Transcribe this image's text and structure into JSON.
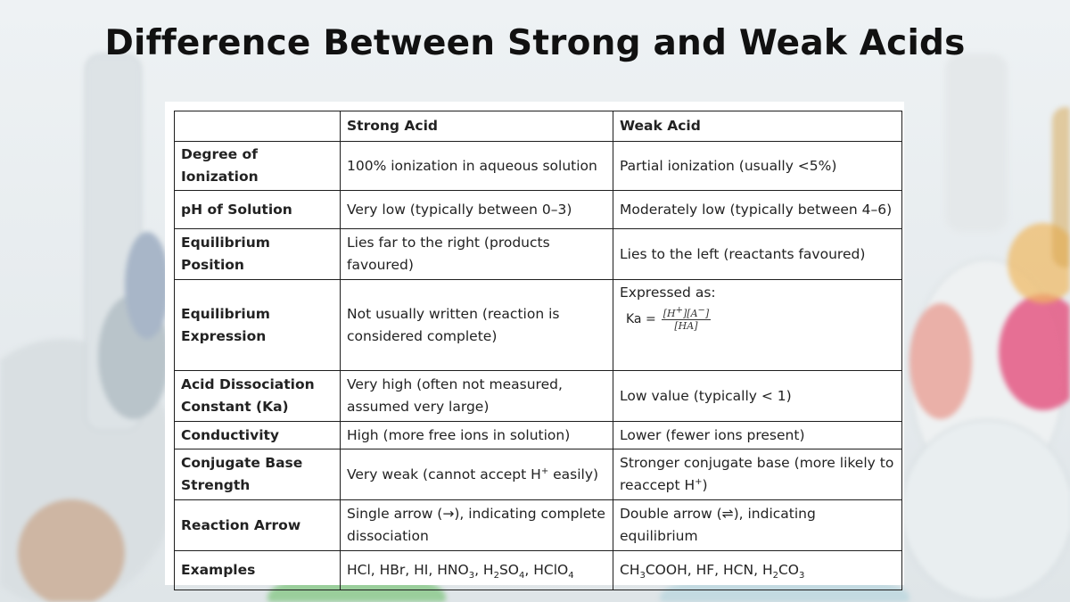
{
  "title": "Difference Between Strong and Weak Acids",
  "colors": {
    "background": "#e6ebee",
    "table_border": "#1e1e1e",
    "text": "#222222"
  },
  "table": {
    "headers": [
      "",
      "Strong Acid",
      "Weak Acid"
    ],
    "rows": [
      {
        "property": "Degree of Ionization",
        "strong": "100% ionization in aqueous solution",
        "weak": "Partial ionization (usually <5%)"
      },
      {
        "property": "pH of Solution",
        "strong": "Very low (typically between 0–3)",
        "weak": "Moderately low (typically between 4–6)"
      },
      {
        "property": "Equilibrium Position",
        "strong": "Lies far to the right (products favoured)",
        "weak": "Lies to the left (reactants favoured)"
      },
      {
        "property": "Equilibrium Expression",
        "strong": "Not usually written (reaction is considered complete)",
        "weak_intro": "Expressed as:",
        "weak_formula_lhs": "Ka =",
        "weak_formula_num_a": "[H",
        "weak_formula_num_a_sup": "+",
        "weak_formula_num_b": "][A",
        "weak_formula_num_b_sup": "−",
        "weak_formula_num_c": "]",
        "weak_formula_den": "[HA]"
      },
      {
        "property": "Acid Dissociation Constant (Ka)",
        "strong": "Very high (often not measured, assumed very large)",
        "weak": "Low value (typically < 1)"
      },
      {
        "property": "Conductivity",
        "strong": "High (more free ions in solution)",
        "weak": "Lower (fewer ions present)"
      },
      {
        "property": "Conjugate Base Strength",
        "strong_a": "Very weak (cannot accept H",
        "strong_sup": "+",
        "strong_b": " easily)",
        "weak_a": "Stronger conjugate base (more likely to reaccept H",
        "weak_sup": "+",
        "weak_b": ")"
      },
      {
        "property": "Reaction Arrow",
        "strong": "Single arrow (→), indicating complete dissociation",
        "weak": "Double arrow (⇌), indicating equilibrium"
      },
      {
        "property": "Examples",
        "strong_parts": [
          "HCl, HBr, HI, HNO",
          "3",
          ", H",
          "2",
          "SO",
          "4",
          ", HClO",
          "4"
        ],
        "weak_parts": [
          "CH",
          "3",
          "COOH, HF, HCN, H",
          "2",
          "CO",
          "3"
        ]
      }
    ]
  }
}
